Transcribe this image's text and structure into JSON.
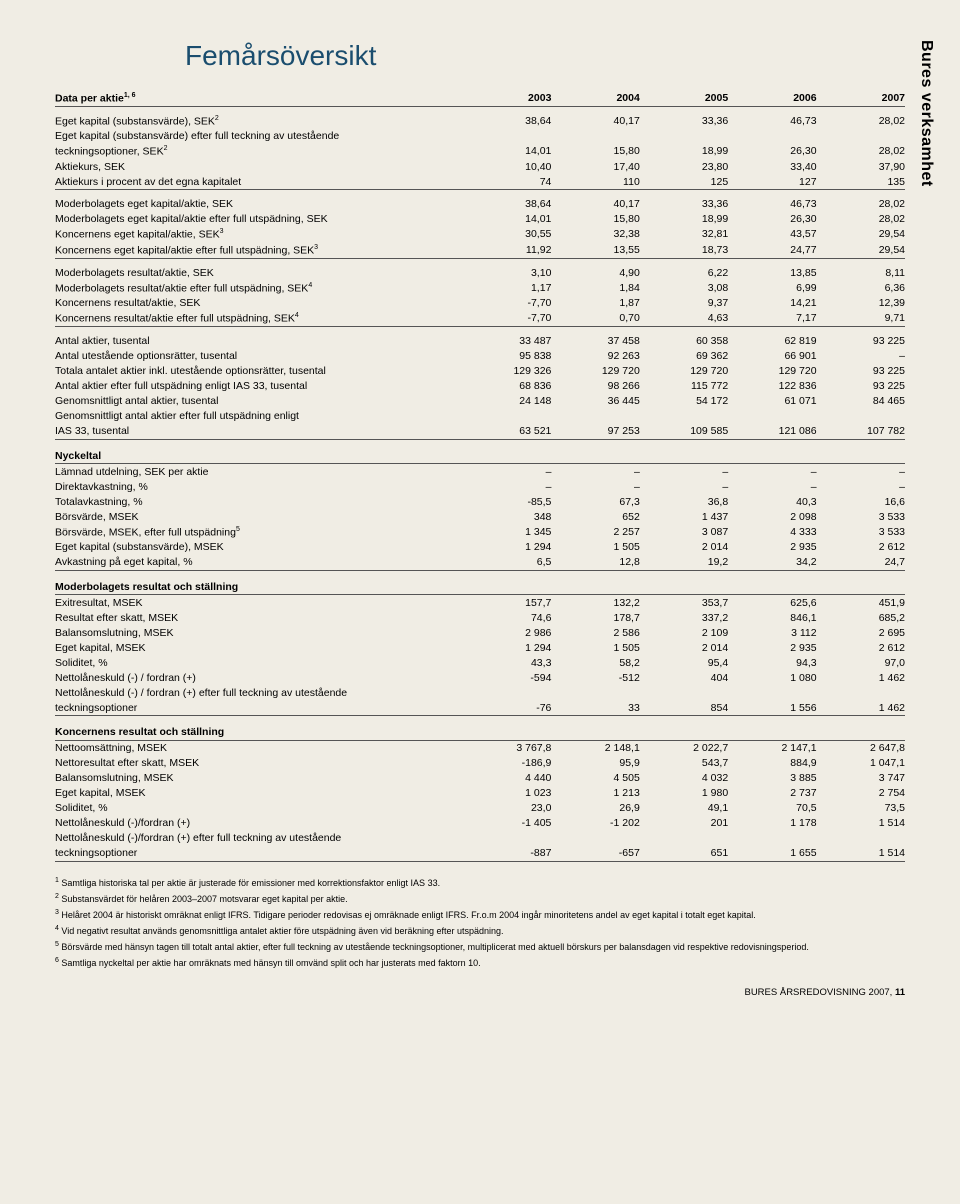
{
  "sideLabel": "Bures verksamhet",
  "title": "Femårsöversikt",
  "header": {
    "label": "Data per aktie",
    "sup": "1, 6",
    "years": [
      "2003",
      "2004",
      "2005",
      "2006",
      "2007"
    ]
  },
  "block1": [
    {
      "label": "Eget kapital (substansvärde), SEK",
      "sup": "2",
      "vals": [
        "38,64",
        "40,17",
        "33,36",
        "46,73",
        "28,02"
      ]
    },
    {
      "label": "Eget kapital (substansvärde) efter full teckning av utestående"
    },
    {
      "label": "teckningsoptioner, SEK",
      "sup": "2",
      "vals": [
        "14,01",
        "15,80",
        "18,99",
        "26,30",
        "28,02"
      ]
    },
    {
      "label": "Aktiekurs, SEK",
      "vals": [
        "10,40",
        "17,40",
        "23,80",
        "33,40",
        "37,90"
      ]
    },
    {
      "label": "Aktiekurs i procent av det egna kapitalet",
      "vals": [
        "74",
        "110",
        "125",
        "127",
        "135"
      ],
      "rb": true
    }
  ],
  "block2": [
    {
      "label": "Moderbolagets eget kapital/aktie, SEK",
      "vals": [
        "38,64",
        "40,17",
        "33,36",
        "46,73",
        "28,02"
      ]
    },
    {
      "label": "Moderbolagets eget kapital/aktie efter full utspädning, SEK",
      "vals": [
        "14,01",
        "15,80",
        "18,99",
        "26,30",
        "28,02"
      ]
    },
    {
      "label": "Koncernens eget kapital/aktie, SEK",
      "sup": "3",
      "vals": [
        "30,55",
        "32,38",
        "32,81",
        "43,57",
        "29,54"
      ]
    },
    {
      "label": "Koncernens eget kapital/aktie efter full utspädning, SEK",
      "sup": "3",
      "vals": [
        "11,92",
        "13,55",
        "18,73",
        "24,77",
        "29,54"
      ],
      "rb": true
    }
  ],
  "block3": [
    {
      "label": "Moderbolagets resultat/aktie, SEK",
      "vals": [
        "3,10",
        "4,90",
        "6,22",
        "13,85",
        "8,11"
      ]
    },
    {
      "label": "Moderbolagets resultat/aktie efter full utspädning, SEK",
      "sup": "4",
      "vals": [
        "1,17",
        "1,84",
        "3,08",
        "6,99",
        "6,36"
      ]
    },
    {
      "label": "Koncernens resultat/aktie, SEK",
      "vals": [
        "-7,70",
        "1,87",
        "9,37",
        "14,21",
        "12,39"
      ]
    },
    {
      "label": "Koncernens resultat/aktie efter full utspädning, SEK",
      "sup": "4",
      "vals": [
        "-7,70",
        "0,70",
        "4,63",
        "7,17",
        "9,71"
      ],
      "rb": true
    }
  ],
  "block4": [
    {
      "label": "Antal aktier, tusental",
      "vals": [
        "33 487",
        "37 458",
        "60 358",
        "62 819",
        "93 225"
      ]
    },
    {
      "label": "Antal utestående optionsrätter, tusental",
      "vals": [
        "95 838",
        "92 263",
        "69 362",
        "66 901",
        "–"
      ]
    },
    {
      "label": "Totala antalet aktier inkl. utestående optionsrätter, tusental",
      "vals": [
        "129 326",
        "129 720",
        "129 720",
        "129 720",
        "93 225"
      ]
    },
    {
      "label": "Antal aktier efter full utspädning enligt IAS 33, tusental",
      "vals": [
        "68 836",
        "98 266",
        "115 772",
        "122 836",
        "93 225"
      ]
    },
    {
      "label": "Genomsnittligt antal aktier, tusental",
      "vals": [
        "24 148",
        "36 445",
        "54 172",
        "61 071",
        "84 465"
      ]
    },
    {
      "label": "Genomsnittligt antal aktier efter full utspädning enligt"
    },
    {
      "label": "IAS 33, tusental",
      "vals": [
        "63 521",
        "97 253",
        "109 585",
        "121 086",
        "107 782"
      ],
      "rb": true
    }
  ],
  "nyckeltal": {
    "head": "Nyckeltal",
    "rows": [
      {
        "label": "Lämnad utdelning, SEK per aktie",
        "vals": [
          "–",
          "–",
          "–",
          "–",
          "–"
        ]
      },
      {
        "label": "Direktavkastning, %",
        "vals": [
          "–",
          "–",
          "–",
          "–",
          "–"
        ]
      },
      {
        "label": "Totalavkastning, %",
        "vals": [
          "-85,5",
          "67,3",
          "36,8",
          "40,3",
          "16,6"
        ]
      },
      {
        "label": "Börsvärde, MSEK",
        "vals": [
          "348",
          "652",
          "1 437",
          "2 098",
          "3 533"
        ]
      },
      {
        "label": "Börsvärde, MSEK, efter full utspädning",
        "sup": "5",
        "vals": [
          "1 345",
          "2 257",
          "3 087",
          "4 333",
          "3 533"
        ]
      },
      {
        "label": "Eget kapital (substansvärde), MSEK",
        "vals": [
          "1 294",
          "1 505",
          "2 014",
          "2 935",
          "2 612"
        ]
      },
      {
        "label": "Avkastning på eget kapital, %",
        "vals": [
          "6,5",
          "12,8",
          "19,2",
          "34,2",
          "24,7"
        ],
        "rb": true
      }
    ]
  },
  "moder": {
    "head": "Moderbolagets resultat och ställning",
    "rows": [
      {
        "label": "Exitresultat, MSEK",
        "vals": [
          "157,7",
          "132,2",
          "353,7",
          "625,6",
          "451,9"
        ]
      },
      {
        "label": "Resultat efter skatt, MSEK",
        "vals": [
          "74,6",
          "178,7",
          "337,2",
          "846,1",
          "685,2"
        ]
      },
      {
        "label": "Balansomslutning, MSEK",
        "vals": [
          "2 986",
          "2 586",
          "2 109",
          "3 112",
          "2 695"
        ]
      },
      {
        "label": "Eget kapital, MSEK",
        "vals": [
          "1 294",
          "1 505",
          "2 014",
          "2 935",
          "2 612"
        ]
      },
      {
        "label": "Soliditet, %",
        "vals": [
          "43,3",
          "58,2",
          "95,4",
          "94,3",
          "97,0"
        ]
      },
      {
        "label": "Nettolåneskuld (-) / fordran (+)",
        "vals": [
          "-594",
          "-512",
          "404",
          "1 080",
          "1 462"
        ]
      },
      {
        "label": "Nettolåneskuld (-) / fordran (+) efter full teckning av utestående"
      },
      {
        "label": "teckningsoptioner",
        "vals": [
          "-76",
          "33",
          "854",
          "1 556",
          "1 462"
        ],
        "rb": true
      }
    ]
  },
  "konc": {
    "head": "Koncernens resultat och ställning",
    "rows": [
      {
        "label": "Nettoomsättning, MSEK",
        "vals": [
          "3 767,8",
          "2 148,1",
          "2 022,7",
          "2 147,1",
          "2 647,8"
        ]
      },
      {
        "label": "Nettoresultat efter skatt, MSEK",
        "vals": [
          "-186,9",
          "95,9",
          "543,7",
          "884,9",
          "1 047,1"
        ]
      },
      {
        "label": "Balansomslutning, MSEK",
        "vals": [
          "4 440",
          "4 505",
          "4 032",
          "3 885",
          "3 747"
        ]
      },
      {
        "label": "Eget kapital, MSEK",
        "vals": [
          "1 023",
          "1 213",
          "1 980",
          "2 737",
          "2 754"
        ]
      },
      {
        "label": "Soliditet, %",
        "vals": [
          "23,0",
          "26,9",
          "49,1",
          "70,5",
          "73,5"
        ]
      },
      {
        "label": "Nettolåneskuld (-)/fordran (+)",
        "vals": [
          "-1 405",
          "-1 202",
          "201",
          "1 178",
          "1 514"
        ]
      },
      {
        "label": "Nettolåneskuld (-)/fordran (+) efter full teckning av utestående"
      },
      {
        "label": "teckningsoptioner",
        "vals": [
          "-887",
          "-657",
          "651",
          "1 655",
          "1 514"
        ],
        "rb": true
      }
    ]
  },
  "footnotes": [
    {
      "n": "1",
      "t": "Samtliga historiska tal per aktie är justerade för emissioner med korrektionsfaktor enligt IAS 33."
    },
    {
      "n": "2",
      "t": "Substansvärdet för helåren 2003–2007 motsvarar eget kapital per aktie."
    },
    {
      "n": "3",
      "t": "Helåret 2004 är historiskt omräknat enligt IFRS. Tidigare perioder redovisas ej omräknade enligt IFRS. Fr.o.m 2004 ingår minoritetens andel av eget kapital i totalt eget kapital."
    },
    {
      "n": "4",
      "t": "Vid negativt resultat används genomsnittliga antalet aktier före utspädning även vid beräkning efter utspädning."
    },
    {
      "n": "5",
      "t": "Börsvärde med hänsyn tagen till totalt antal aktier, efter full teckning av utestående teckningsoptioner, multiplicerat med aktuell börskurs per balansdagen vid respektive redovisningsperiod."
    },
    {
      "n": "6",
      "t": "Samtliga nyckeltal per aktie har omräknats med hänsyn till omvänd split och har justerats med faktorn 10."
    }
  ],
  "footer": {
    "text": "BURES ÅRSREDOVISNING 2007, ",
    "page": "11"
  }
}
